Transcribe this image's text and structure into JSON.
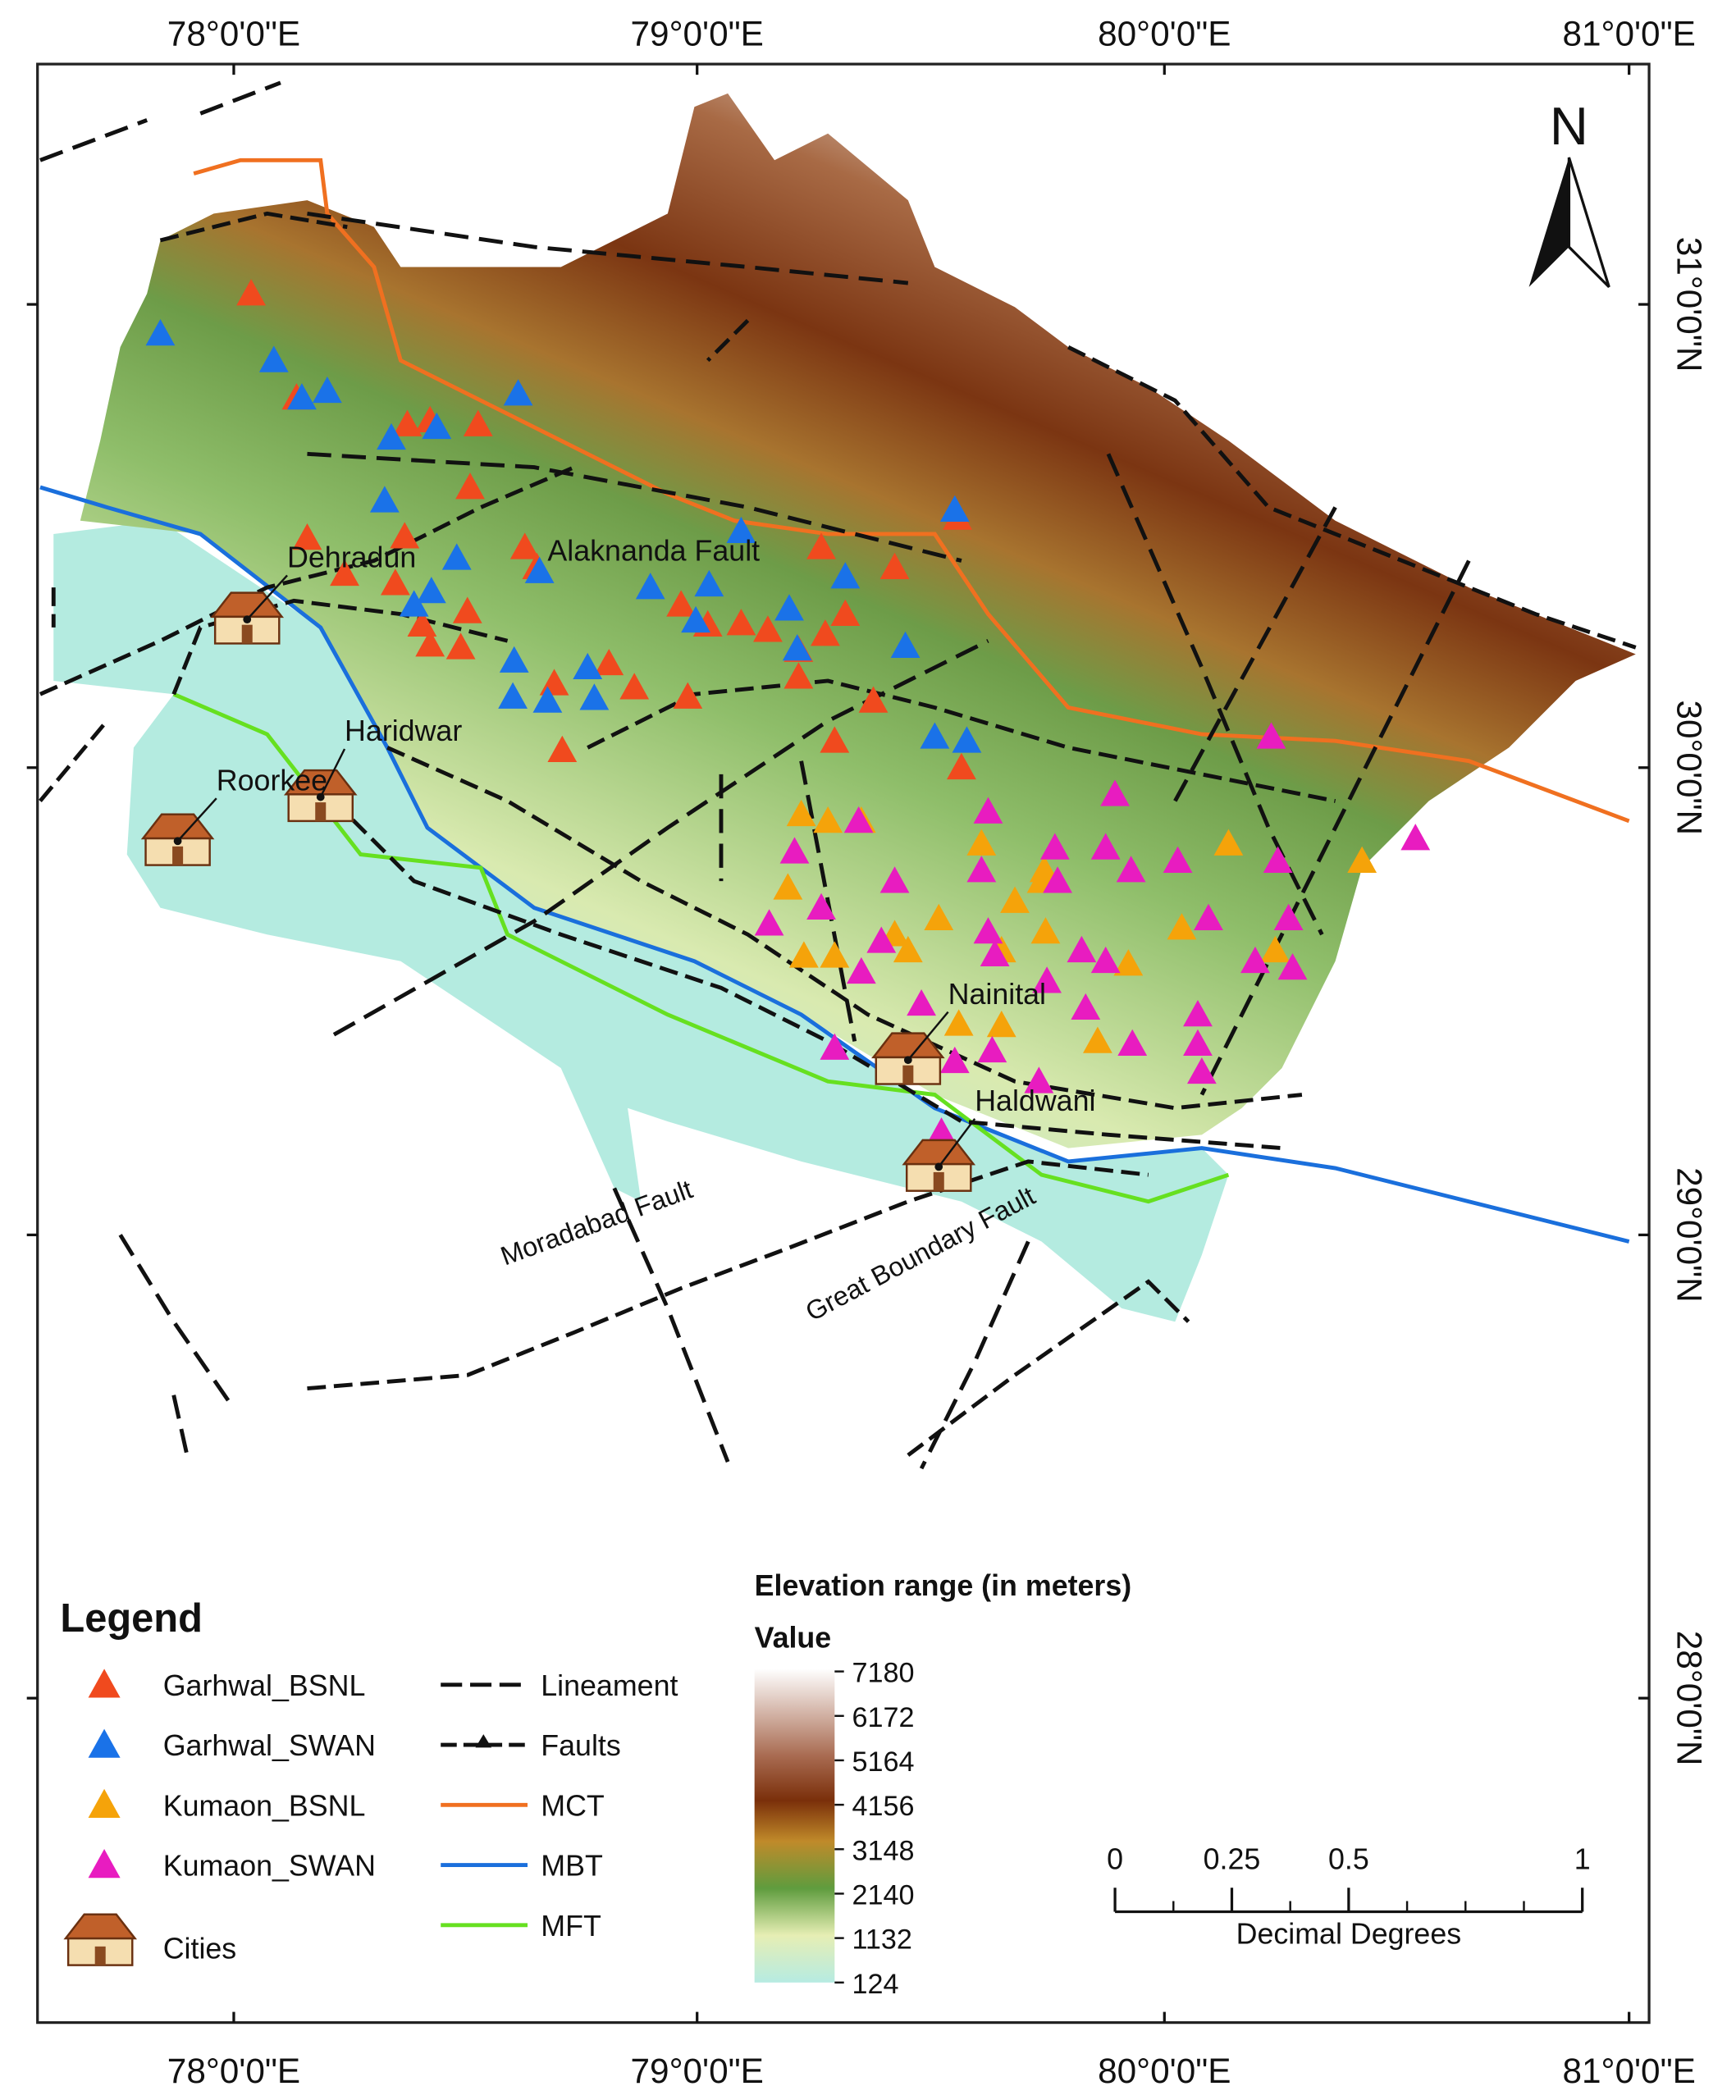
{
  "map": {
    "top_labels": [
      "78°0'0\"E",
      "79°0'0\"E",
      "80°0'0\"E",
      "81°0'0\"E"
    ],
    "bottom_labels": [
      "78°0'0\"E",
      "79°0'0\"E",
      "80°0'0\"E",
      "81°0'0\"E"
    ],
    "right_labels": [
      "31°0'0\"N",
      "30°0'0\"N",
      "29°0'0\"N",
      "28°0'0\"N"
    ],
    "north": "N",
    "places": [
      "Dehradun",
      "Haridwar",
      "Roorkee",
      "Nainital",
      "Haldwani"
    ],
    "faults": [
      "Alaknanda Fault",
      "Moradabad Fault",
      "Great Boundary Fault"
    ]
  },
  "legend": {
    "title": "Legend",
    "items": [
      "Garhwal_BSNL",
      "Garhwal_SWAN",
      "Kumaon_BSNL",
      "Kumaon_SWAN",
      "Cities"
    ],
    "line_items": [
      "Lineament",
      "Faults",
      "MCT",
      "MBT",
      "MFT"
    ]
  },
  "elevation": {
    "title": "Elevation range (in meters)",
    "label": "Value",
    "ticks": [
      7180,
      6172,
      5164,
      4156,
      3148,
      2140,
      1132,
      124
    ]
  },
  "scale_bar": {
    "ticks": [
      0,
      0.25,
      0.5,
      1
    ],
    "unit": "Decimal Degrees"
  }
}
